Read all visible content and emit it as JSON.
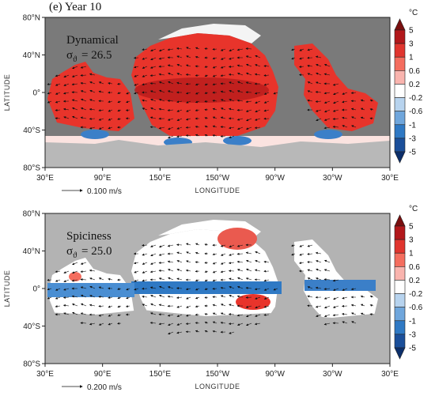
{
  "panel_label": "(e) Year 10",
  "axes": {
    "y_label": "LATITUDE",
    "x_label": "LONGITUDE",
    "yticks": [
      "80°N",
      "40°N",
      "0°",
      "40°S",
      "80°S"
    ],
    "xticks": [
      "30°E",
      "90°E",
      "150°E",
      "150°W",
      "90°W",
      "30°W",
      "30°E"
    ]
  },
  "panels": [
    {
      "title": "Dynamical",
      "sigma": "σ",
      "sigma_sub": "ϑ",
      "sigma_value": "= 26.5",
      "vector_scale": "0.100 m/s"
    },
    {
      "title": "Spiciness",
      "sigma": "σ",
      "sigma_sub": "ϑ",
      "sigma_value": "= 25.0",
      "vector_scale": "0.200 m/s"
    }
  ],
  "colorbar": {
    "unit": "°C",
    "labels": [
      "5",
      "3",
      "1",
      "0.6",
      "0.2",
      "-0.2",
      "-0.6",
      "-1",
      "-3",
      "-5"
    ],
    "colors": [
      "#7a0f0f",
      "#b2181b",
      "#e0352e",
      "#f46d5e",
      "#f9b4ae",
      "#ffffff",
      "#b7d3ee",
      "#6fa6dc",
      "#2f79c4",
      "#1b4f9a",
      "#0c2f6b"
    ]
  }
}
